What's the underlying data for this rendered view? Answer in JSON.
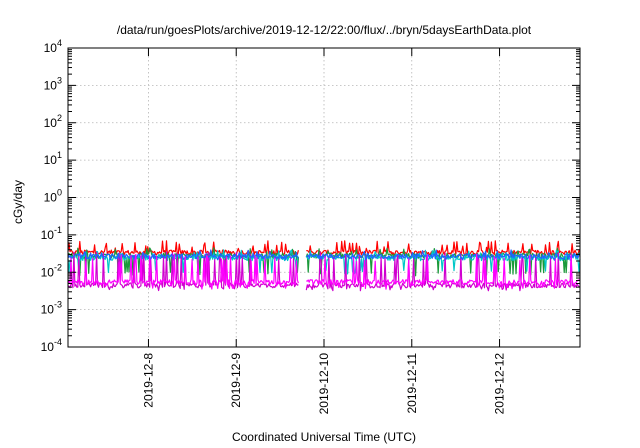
{
  "chart_data": {
    "type": "line",
    "title": "/data/run/goesPlots/archive/2019-12-12/22:00/flux/../bryn/5daysEarthData.plot",
    "xlabel": "Coordinated Universal Time (UTC)",
    "ylabel": "cGy/day",
    "yscale": "log",
    "ylim": [
      0.0001,
      10000
    ],
    "xlim": [
      "2019-12-07T02:00",
      "2019-12-12T22:00"
    ],
    "y_ticks": [
      {
        "base": "10",
        "exp": "4",
        "value": 10000
      },
      {
        "base": "10",
        "exp": "3",
        "value": 1000
      },
      {
        "base": "10",
        "exp": "2",
        "value": 100
      },
      {
        "base": "10",
        "exp": "1",
        "value": 10
      },
      {
        "base": "10",
        "exp": "0",
        "value": 1
      },
      {
        "base": "10",
        "exp": "-1",
        "value": 0.1
      },
      {
        "base": "10",
        "exp": "-2",
        "value": 0.01
      },
      {
        "base": "10",
        "exp": "-3",
        "value": 0.001
      },
      {
        "base": "10",
        "exp": "-4",
        "value": 0.0001
      }
    ],
    "x_ticks": [
      {
        "label": "2019-12-8",
        "value": "2019-12-08T00:00"
      },
      {
        "label": "2019-12-9",
        "value": "2019-12-09T00:00"
      },
      {
        "label": "2019-12-10",
        "value": "2019-12-10T00:00"
      },
      {
        "label": "2019-12-11",
        "value": "2019-12-11T00:00"
      },
      {
        "label": "2019-12-12",
        "value": "2019-12-12T00:00"
      }
    ],
    "grid": true,
    "data_gap": [
      "2019-12-09T17:00",
      "2019-12-09T19:00"
    ],
    "series": [
      {
        "color": "#ff0000",
        "base": 0.034,
        "spike_max": 0.07,
        "dip_min": 0.03
      },
      {
        "color": "#1a9a3a",
        "base": 0.028,
        "spike_max": 0.045,
        "dip_min": 0.008
      },
      {
        "color": "#00c8c8",
        "base": 0.024,
        "spike_max": 0.04,
        "dip_min": 0.009
      },
      {
        "color": "#d000d0",
        "base": 0.0045,
        "spike_max": 0.035,
        "dip_min": 0.0032
      },
      {
        "color": "#1f64ff",
        "base": 0.027,
        "spike_max": 0.04,
        "dip_min": 0.02
      },
      {
        "color": "#ff00ff",
        "base": 0.0055,
        "spike_max": 0.03,
        "dip_min": 0.0035
      }
    ]
  }
}
